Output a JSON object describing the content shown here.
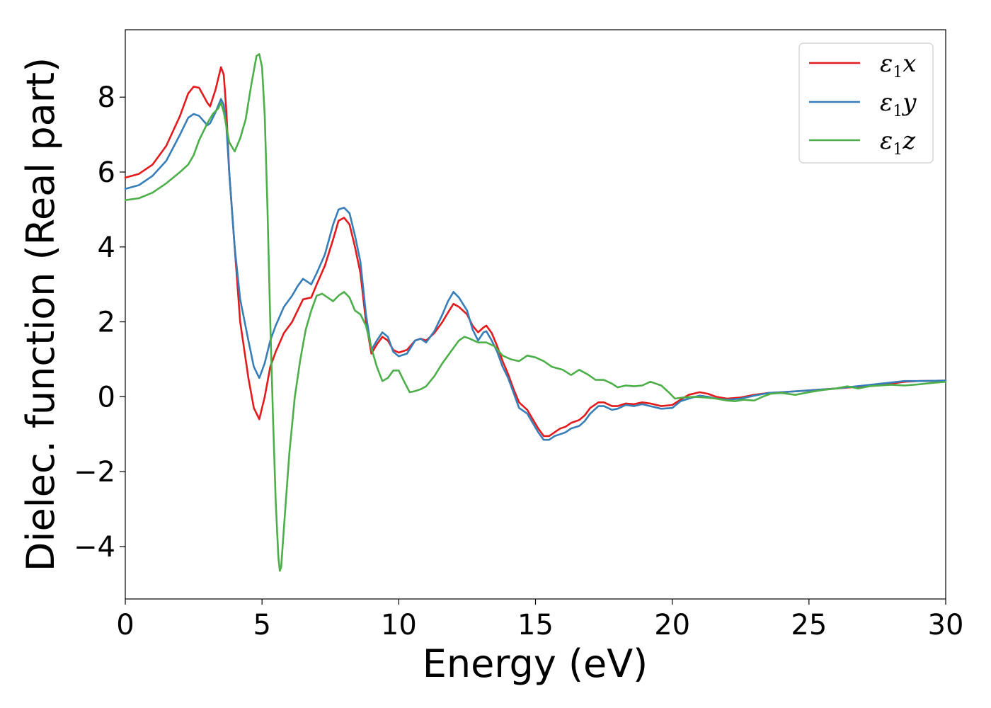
{
  "chart_data": {
    "type": "line",
    "title": "",
    "xlabel": "Energy (eV)",
    "ylabel": "Dielec. function (Real part)",
    "xlim": [
      0,
      30
    ],
    "ylim": [
      -5.4,
      9.8
    ],
    "xticks": [
      0,
      5,
      10,
      15,
      20,
      25,
      30
    ],
    "xtick_labels": [
      "0",
      "5",
      "10",
      "15",
      "20",
      "25",
      "30"
    ],
    "yticks": [
      -4,
      -2,
      0,
      2,
      4,
      6,
      8
    ],
    "ytick_labels": [
      "−4",
      "−2",
      "0",
      "2",
      "4",
      "6",
      "8"
    ],
    "grid": false,
    "legend_position": "top-right",
    "series": [
      {
        "name": "ε1x",
        "name_base": "ε",
        "name_sub": "1",
        "name_suffix": "x",
        "color": "#e41a1c",
        "points": [
          [
            0,
            5.85
          ],
          [
            0.5,
            5.95
          ],
          [
            1,
            6.2
          ],
          [
            1.5,
            6.7
          ],
          [
            2,
            7.5
          ],
          [
            2.3,
            8.1
          ],
          [
            2.5,
            8.28
          ],
          [
            2.7,
            8.25
          ],
          [
            3,
            7.85
          ],
          [
            3.1,
            7.75
          ],
          [
            3.3,
            8.2
          ],
          [
            3.5,
            8.8
          ],
          [
            3.6,
            8.6
          ],
          [
            3.7,
            7.6
          ],
          [
            3.8,
            6.0
          ],
          [
            4,
            4.0
          ],
          [
            4.2,
            2.0
          ],
          [
            4.5,
            0.5
          ],
          [
            4.7,
            -0.3
          ],
          [
            4.9,
            -0.6
          ],
          [
            5.1,
            0.0
          ],
          [
            5.3,
            0.8
          ],
          [
            5.5,
            1.2
          ],
          [
            5.8,
            1.7
          ],
          [
            6.1,
            2.0
          ],
          [
            6.3,
            2.3
          ],
          [
            6.5,
            2.6
          ],
          [
            6.8,
            2.65
          ],
          [
            7,
            3.0
          ],
          [
            7.3,
            3.5
          ],
          [
            7.6,
            4.2
          ],
          [
            7.8,
            4.7
          ],
          [
            8,
            4.78
          ],
          [
            8.2,
            4.6
          ],
          [
            8.4,
            4.0
          ],
          [
            8.6,
            3.3
          ],
          [
            8.8,
            2.0
          ],
          [
            9,
            1.15
          ],
          [
            9.2,
            1.4
          ],
          [
            9.4,
            1.6
          ],
          [
            9.6,
            1.5
          ],
          [
            9.8,
            1.25
          ],
          [
            10,
            1.18
          ],
          [
            10.3,
            1.25
          ],
          [
            10.6,
            1.5
          ],
          [
            10.8,
            1.55
          ],
          [
            11,
            1.5
          ],
          [
            11.3,
            1.7
          ],
          [
            11.6,
            2.0
          ],
          [
            11.8,
            2.25
          ],
          [
            12,
            2.48
          ],
          [
            12.2,
            2.4
          ],
          [
            12.5,
            2.2
          ],
          [
            12.7,
            1.9
          ],
          [
            12.9,
            1.72
          ],
          [
            13.1,
            1.85
          ],
          [
            13.2,
            1.9
          ],
          [
            13.4,
            1.7
          ],
          [
            13.6,
            1.35
          ],
          [
            13.8,
            0.95
          ],
          [
            14,
            0.6
          ],
          [
            14.2,
            0.2
          ],
          [
            14.4,
            -0.15
          ],
          [
            14.7,
            -0.35
          ],
          [
            14.9,
            -0.6
          ],
          [
            15.1,
            -0.85
          ],
          [
            15.3,
            -1.05
          ],
          [
            15.5,
            -1.05
          ],
          [
            15.7,
            -0.95
          ],
          [
            15.9,
            -0.85
          ],
          [
            16.1,
            -0.8
          ],
          [
            16.3,
            -0.7
          ],
          [
            16.6,
            -0.62
          ],
          [
            16.8,
            -0.5
          ],
          [
            17,
            -0.3
          ],
          [
            17.3,
            -0.15
          ],
          [
            17.5,
            -0.15
          ],
          [
            17.8,
            -0.25
          ],
          [
            18,
            -0.25
          ],
          [
            18.3,
            -0.18
          ],
          [
            18.6,
            -0.2
          ],
          [
            18.9,
            -0.15
          ],
          [
            19.2,
            -0.18
          ],
          [
            19.6,
            -0.25
          ],
          [
            20,
            -0.22
          ],
          [
            20.3,
            -0.08
          ],
          [
            20.6,
            0.05
          ],
          [
            21,
            0.12
          ],
          [
            21.3,
            0.08
          ],
          [
            21.6,
            0.0
          ],
          [
            22,
            -0.05
          ],
          [
            22.5,
            -0.02
          ],
          [
            23,
            0.05
          ],
          [
            23.5,
            0.1
          ],
          [
            24,
            0.12
          ],
          [
            25,
            0.17
          ],
          [
            26,
            0.22
          ],
          [
            27,
            0.28
          ],
          [
            28,
            0.35
          ],
          [
            28.5,
            0.4
          ],
          [
            29,
            0.42
          ],
          [
            30,
            0.43
          ]
        ]
      },
      {
        "name": "ε1y",
        "name_base": "ε",
        "name_sub": "1",
        "name_suffix": "y",
        "color": "#377eb8",
        "points": [
          [
            0,
            5.55
          ],
          [
            0.5,
            5.65
          ],
          [
            1,
            5.9
          ],
          [
            1.5,
            6.3
          ],
          [
            2,
            7.0
          ],
          [
            2.3,
            7.45
          ],
          [
            2.5,
            7.55
          ],
          [
            2.7,
            7.5
          ],
          [
            3,
            7.25
          ],
          [
            3.1,
            7.3
          ],
          [
            3.3,
            7.6
          ],
          [
            3.5,
            7.95
          ],
          [
            3.6,
            7.8
          ],
          [
            3.7,
            7.2
          ],
          [
            3.8,
            6.0
          ],
          [
            4,
            4.0
          ],
          [
            4.2,
            2.6
          ],
          [
            4.5,
            1.5
          ],
          [
            4.7,
            0.8
          ],
          [
            4.9,
            0.5
          ],
          [
            5.1,
            0.9
          ],
          [
            5.3,
            1.5
          ],
          [
            5.5,
            1.9
          ],
          [
            5.8,
            2.4
          ],
          [
            6.1,
            2.7
          ],
          [
            6.3,
            2.95
          ],
          [
            6.5,
            3.15
          ],
          [
            6.8,
            3.0
          ],
          [
            7,
            3.3
          ],
          [
            7.3,
            3.8
          ],
          [
            7.6,
            4.6
          ],
          [
            7.8,
            5.0
          ],
          [
            8,
            5.05
          ],
          [
            8.2,
            4.9
          ],
          [
            8.4,
            4.3
          ],
          [
            8.6,
            3.6
          ],
          [
            8.8,
            2.2
          ],
          [
            9,
            1.25
          ],
          [
            9.2,
            1.5
          ],
          [
            9.4,
            1.72
          ],
          [
            9.6,
            1.6
          ],
          [
            9.8,
            1.2
          ],
          [
            10,
            1.08
          ],
          [
            10.3,
            1.15
          ],
          [
            10.6,
            1.5
          ],
          [
            10.8,
            1.55
          ],
          [
            11,
            1.45
          ],
          [
            11.3,
            1.75
          ],
          [
            11.6,
            2.2
          ],
          [
            11.8,
            2.55
          ],
          [
            12,
            2.8
          ],
          [
            12.2,
            2.65
          ],
          [
            12.5,
            2.3
          ],
          [
            12.7,
            1.8
          ],
          [
            12.9,
            1.5
          ],
          [
            13.1,
            1.72
          ],
          [
            13.2,
            1.75
          ],
          [
            13.4,
            1.5
          ],
          [
            13.6,
            1.2
          ],
          [
            13.8,
            0.8
          ],
          [
            14,
            0.5
          ],
          [
            14.2,
            0.1
          ],
          [
            14.4,
            -0.3
          ],
          [
            14.7,
            -0.45
          ],
          [
            14.9,
            -0.7
          ],
          [
            15.1,
            -0.95
          ],
          [
            15.3,
            -1.15
          ],
          [
            15.5,
            -1.15
          ],
          [
            15.7,
            -1.05
          ],
          [
            15.9,
            -1.0
          ],
          [
            16.1,
            -0.95
          ],
          [
            16.3,
            -0.85
          ],
          [
            16.6,
            -0.78
          ],
          [
            16.8,
            -0.65
          ],
          [
            17,
            -0.45
          ],
          [
            17.3,
            -0.25
          ],
          [
            17.5,
            -0.25
          ],
          [
            17.8,
            -0.35
          ],
          [
            18,
            -0.32
          ],
          [
            18.3,
            -0.22
          ],
          [
            18.6,
            -0.25
          ],
          [
            18.9,
            -0.2
          ],
          [
            19.2,
            -0.25
          ],
          [
            19.6,
            -0.32
          ],
          [
            20,
            -0.3
          ],
          [
            20.3,
            -0.12
          ],
          [
            20.6,
            -0.05
          ],
          [
            21,
            0.03
          ],
          [
            21.3,
            0.0
          ],
          [
            21.6,
            -0.05
          ],
          [
            22,
            -0.08
          ],
          [
            22.5,
            -0.05
          ],
          [
            23,
            0.03
          ],
          [
            23.5,
            0.1
          ],
          [
            24,
            0.12
          ],
          [
            25,
            0.17
          ],
          [
            26,
            0.22
          ],
          [
            27,
            0.3
          ],
          [
            28,
            0.38
          ],
          [
            28.5,
            0.42
          ],
          [
            29,
            0.42
          ],
          [
            30,
            0.43
          ]
        ]
      },
      {
        "name": "ε1z",
        "name_base": "ε",
        "name_sub": "1",
        "name_suffix": "z",
        "color": "#4daf4a",
        "points": [
          [
            0,
            5.25
          ],
          [
            0.5,
            5.3
          ],
          [
            1,
            5.45
          ],
          [
            1.5,
            5.7
          ],
          [
            2,
            6.0
          ],
          [
            2.3,
            6.2
          ],
          [
            2.5,
            6.45
          ],
          [
            2.7,
            6.85
          ],
          [
            3,
            7.3
          ],
          [
            3.2,
            7.55
          ],
          [
            3.4,
            7.7
          ],
          [
            3.5,
            7.85
          ],
          [
            3.6,
            7.6
          ],
          [
            3.8,
            6.8
          ],
          [
            4,
            6.55
          ],
          [
            4.2,
            6.9
          ],
          [
            4.4,
            7.4
          ],
          [
            4.6,
            8.3
          ],
          [
            4.8,
            9.1
          ],
          [
            4.9,
            9.15
          ],
          [
            5.0,
            8.8
          ],
          [
            5.1,
            7.5
          ],
          [
            5.2,
            5.0
          ],
          [
            5.3,
            2.0
          ],
          [
            5.4,
            -0.5
          ],
          [
            5.5,
            -2.8
          ],
          [
            5.6,
            -4.3
          ],
          [
            5.65,
            -4.65
          ],
          [
            5.7,
            -4.55
          ],
          [
            5.8,
            -3.5
          ],
          [
            6,
            -1.5
          ],
          [
            6.2,
            0.0
          ],
          [
            6.4,
            1.0
          ],
          [
            6.6,
            1.8
          ],
          [
            6.8,
            2.3
          ],
          [
            7,
            2.7
          ],
          [
            7.2,
            2.75
          ],
          [
            7.4,
            2.65
          ],
          [
            7.6,
            2.55
          ],
          [
            7.8,
            2.7
          ],
          [
            8,
            2.8
          ],
          [
            8.2,
            2.65
          ],
          [
            8.4,
            2.3
          ],
          [
            8.6,
            2.2
          ],
          [
            8.8,
            1.9
          ],
          [
            9,
            1.3
          ],
          [
            9.2,
            0.8
          ],
          [
            9.4,
            0.42
          ],
          [
            9.6,
            0.5
          ],
          [
            9.8,
            0.7
          ],
          [
            10,
            0.7
          ],
          [
            10.2,
            0.4
          ],
          [
            10.4,
            0.12
          ],
          [
            10.6,
            0.15
          ],
          [
            10.8,
            0.2
          ],
          [
            11,
            0.28
          ],
          [
            11.3,
            0.55
          ],
          [
            11.6,
            0.9
          ],
          [
            11.9,
            1.2
          ],
          [
            12.2,
            1.5
          ],
          [
            12.4,
            1.6
          ],
          [
            12.6,
            1.55
          ],
          [
            12.9,
            1.45
          ],
          [
            13.2,
            1.45
          ],
          [
            13.5,
            1.35
          ],
          [
            13.8,
            1.1
          ],
          [
            14.1,
            1.0
          ],
          [
            14.4,
            0.95
          ],
          [
            14.7,
            1.1
          ],
          [
            15,
            1.05
          ],
          [
            15.3,
            0.95
          ],
          [
            15.6,
            0.8
          ],
          [
            16,
            0.72
          ],
          [
            16.3,
            0.58
          ],
          [
            16.6,
            0.72
          ],
          [
            16.9,
            0.6
          ],
          [
            17.2,
            0.45
          ],
          [
            17.5,
            0.45
          ],
          [
            17.8,
            0.35
          ],
          [
            18,
            0.25
          ],
          [
            18.3,
            0.3
          ],
          [
            18.6,
            0.28
          ],
          [
            18.9,
            0.3
          ],
          [
            19.2,
            0.4
          ],
          [
            19.6,
            0.3
          ],
          [
            19.9,
            0.1
          ],
          [
            20.1,
            -0.05
          ],
          [
            20.4,
            -0.02
          ],
          [
            20.8,
            0.0
          ],
          [
            21.2,
            -0.02
          ],
          [
            21.6,
            -0.05
          ],
          [
            22,
            -0.1
          ],
          [
            22.3,
            -0.12
          ],
          [
            22.6,
            -0.08
          ],
          [
            23,
            -0.1
          ],
          [
            23.3,
            0.0
          ],
          [
            23.6,
            0.08
          ],
          [
            24,
            0.1
          ],
          [
            24.5,
            0.05
          ],
          [
            25,
            0.12
          ],
          [
            25.5,
            0.18
          ],
          [
            26,
            0.22
          ],
          [
            26.4,
            0.28
          ],
          [
            26.8,
            0.22
          ],
          [
            27.2,
            0.28
          ],
          [
            27.6,
            0.3
          ],
          [
            28,
            0.32
          ],
          [
            28.5,
            0.3
          ],
          [
            29,
            0.33
          ],
          [
            29.5,
            0.37
          ],
          [
            30,
            0.4
          ]
        ]
      }
    ]
  }
}
